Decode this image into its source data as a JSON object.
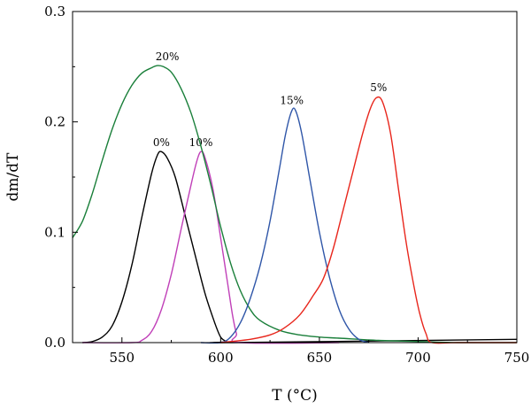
{
  "chart_data": {
    "type": "line",
    "title": "",
    "xlabel": "T (°C)",
    "ylabel": "dm/dT",
    "xlim": [
      525,
      750
    ],
    "ylim": [
      0,
      0.3
    ],
    "x_ticks": [
      550,
      600,
      650,
      700,
      750
    ],
    "x_tick_labels": [
      "550",
      "600",
      "650",
      "700",
      "750"
    ],
    "y_ticks": [
      0,
      0.1,
      0.2,
      0.3
    ],
    "y_tick_labels": [
      "0.0",
      "0.1",
      "0.2",
      "0.3"
    ],
    "grid": false,
    "legend": "none",
    "series": [
      {
        "name": "0%",
        "color": "#000000",
        "label_at": [
          570,
          0.178
        ],
        "points": [
          [
            530,
            0
          ],
          [
            535,
            0.001
          ],
          [
            540,
            0.005
          ],
          [
            545,
            0.015
          ],
          [
            550,
            0.037
          ],
          [
            555,
            0.07
          ],
          [
            560,
            0.113
          ],
          [
            565,
            0.153
          ],
          [
            568,
            0.17
          ],
          [
            570,
            0.173
          ],
          [
            573,
            0.167
          ],
          [
            577,
            0.15
          ],
          [
            582,
            0.115
          ],
          [
            587,
            0.08
          ],
          [
            592,
            0.045
          ],
          [
            597,
            0.018
          ],
          [
            600,
            0.005
          ],
          [
            603,
            0.001
          ],
          [
            606,
            0
          ],
          [
            750,
            0.003
          ]
        ]
      },
      {
        "name": "10%",
        "color": "#c040b8",
        "label_at": [
          590,
          0.178
        ],
        "points": [
          [
            530,
            0
          ],
          [
            555,
            0
          ],
          [
            560,
            0.002
          ],
          [
            565,
            0.01
          ],
          [
            570,
            0.03
          ],
          [
            575,
            0.062
          ],
          [
            580,
            0.103
          ],
          [
            585,
            0.143
          ],
          [
            588,
            0.165
          ],
          [
            590,
            0.173
          ],
          [
            592,
            0.168
          ],
          [
            596,
            0.14
          ],
          [
            600,
            0.095
          ],
          [
            603,
            0.06
          ],
          [
            606,
            0.025
          ],
          [
            608,
            0.008
          ],
          [
            610,
            0
          ],
          [
            660,
            0
          ]
        ]
      },
      {
        "name": "20%",
        "color": "#1a7f3a",
        "label_at": [
          573,
          0.256
        ],
        "points": [
          [
            525,
            0.095
          ],
          [
            530,
            0.11
          ],
          [
            535,
            0.135
          ],
          [
            540,
            0.165
          ],
          [
            545,
            0.193
          ],
          [
            550,
            0.216
          ],
          [
            555,
            0.233
          ],
          [
            560,
            0.244
          ],
          [
            565,
            0.249
          ],
          [
            568,
            0.251
          ],
          [
            571,
            0.25
          ],
          [
            575,
            0.245
          ],
          [
            580,
            0.23
          ],
          [
            585,
            0.208
          ],
          [
            590,
            0.178
          ],
          [
            595,
            0.143
          ],
          [
            600,
            0.105
          ],
          [
            605,
            0.072
          ],
          [
            610,
            0.047
          ],
          [
            615,
            0.03
          ],
          [
            620,
            0.02
          ],
          [
            630,
            0.011
          ],
          [
            640,
            0.007
          ],
          [
            650,
            0.005
          ],
          [
            660,
            0.004
          ],
          [
            680,
            0.002
          ],
          [
            700,
            0.001
          ],
          [
            720,
            0
          ],
          [
            750,
            0
          ]
        ]
      },
      {
        "name": "15%",
        "color": "#2f56a8",
        "label_at": [
          636,
          0.216
        ],
        "points": [
          [
            590,
            0
          ],
          [
            600,
            0
          ],
          [
            605,
            0.005
          ],
          [
            610,
            0.018
          ],
          [
            615,
            0.04
          ],
          [
            620,
            0.07
          ],
          [
            625,
            0.11
          ],
          [
            630,
            0.16
          ],
          [
            633,
            0.19
          ],
          [
            636,
            0.21
          ],
          [
            638,
            0.21
          ],
          [
            641,
            0.19
          ],
          [
            645,
            0.15
          ],
          [
            650,
            0.1
          ],
          [
            655,
            0.06
          ],
          [
            660,
            0.03
          ],
          [
            665,
            0.012
          ],
          [
            670,
            0.003
          ],
          [
            675,
            0
          ]
        ]
      },
      {
        "name": "5%",
        "color": "#e8261c",
        "label_at": [
          680,
          0.228
        ],
        "points": [
          [
            600,
            0
          ],
          [
            605,
            0.001
          ],
          [
            615,
            0.003
          ],
          [
            625,
            0.007
          ],
          [
            632,
            0.013
          ],
          [
            640,
            0.025
          ],
          [
            647,
            0.043
          ],
          [
            652,
            0.058
          ],
          [
            657,
            0.085
          ],
          [
            662,
            0.12
          ],
          [
            667,
            0.155
          ],
          [
            672,
            0.19
          ],
          [
            676,
            0.213
          ],
          [
            679,
            0.222
          ],
          [
            682,
            0.218
          ],
          [
            686,
            0.19
          ],
          [
            690,
            0.14
          ],
          [
            694,
            0.09
          ],
          [
            698,
            0.05
          ],
          [
            701,
            0.025
          ],
          [
            704,
            0.008
          ],
          [
            707,
            0
          ],
          [
            720,
            0
          ],
          [
            750,
            0
          ]
        ]
      }
    ]
  }
}
